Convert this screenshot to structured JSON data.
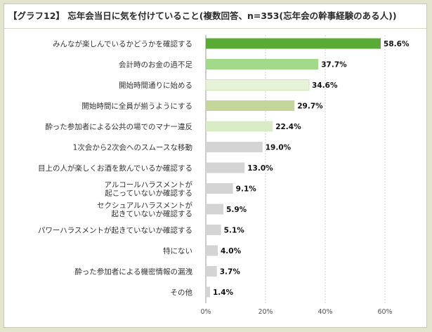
{
  "title": "【グラフ12】 忘年会当日に気を付けていること(複数回答、n=353(忘年会の幹事経験のある人))",
  "chart_data": {
    "type": "bar",
    "orientation": "horizontal",
    "title": "【グラフ12】 忘年会当日に気を付けていること(複数回答、n=353(忘年会の幹事経験のある人))",
    "categories": [
      [
        "みんなが楽しんでいるかどうかを確認する"
      ],
      [
        "会計時のお金の過不足"
      ],
      [
        "開始時間通りに始める"
      ],
      [
        "開始時間に全員が揃うようにする"
      ],
      [
        "酔った参加者による公共の場でのマナー違反"
      ],
      [
        "1次会から2次会へのスムースな移動"
      ],
      [
        "目上の人が楽しくお酒を飲んでいるか確認する"
      ],
      [
        "アルコールハラスメントが",
        "起こっていないか確認する"
      ],
      [
        "セクシュアルハラスメントが",
        "起きていないか確認する"
      ],
      [
        "パワーハラスメントが起きていないか確認する"
      ],
      [
        "特にない"
      ],
      [
        "酔った参加者による機密情報の漏洩"
      ],
      [
        "その他"
      ]
    ],
    "values": [
      58.6,
      37.7,
      34.6,
      29.7,
      22.4,
      19.0,
      13.0,
      9.1,
      5.9,
      5.1,
      4.0,
      3.7,
      1.4
    ],
    "value_labels": [
      "58.6%",
      "37.7%",
      "34.6%",
      "29.7%",
      "22.4%",
      "19.0%",
      "13.0%",
      "9.1%",
      "5.9%",
      "5.1%",
      "4.0%",
      "3.7%",
      "1.4%"
    ],
    "bar_colors": [
      "#5aab36",
      "#a3d98a",
      "#e7f3d8",
      "#c4d69a",
      "#d8edc6",
      "#d4d4d4",
      "#d4d4d4",
      "#d4d4d4",
      "#d4d4d4",
      "#d4d4d4",
      "#d4d4d4",
      "#d4d4d4",
      "#d4d4d4"
    ],
    "x_ticks": [
      0,
      20,
      40,
      60
    ],
    "x_tick_labels": [
      "0%",
      "20%",
      "40%",
      "60%"
    ],
    "xlim": [
      0,
      60
    ],
    "grid": true
  }
}
